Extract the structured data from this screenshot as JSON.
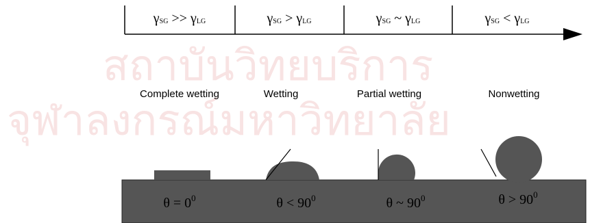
{
  "watermark": {
    "line1": "สถาบันวิทยบริการ",
    "line2": "จุฬาลงกรณ์มหาวิทยาลัย"
  },
  "conditions": [
    {
      "lhs": "γ",
      "lhs_sub": "SG",
      "op": ">>",
      "rhs": "γ",
      "rhs_sub": "LG"
    },
    {
      "lhs": "γ",
      "lhs_sub": "SG",
      "op": ">",
      "rhs": "γ",
      "rhs_sub": "LG"
    },
    {
      "lhs": "γ",
      "lhs_sub": "SG",
      "op": "~",
      "rhs": "γ",
      "rhs_sub": "LG"
    },
    {
      "lhs": "γ",
      "lhs_sub": "SG",
      "op": "<",
      "rhs": "γ",
      "rhs_sub": "LG"
    }
  ],
  "regimes": [
    "Complete wetting",
    "Wetting",
    "Partial wetting",
    "Nonwetting"
  ],
  "angles": [
    {
      "text": "θ = 0",
      "sup": "0"
    },
    {
      "text": "θ < 90",
      "sup": "0"
    },
    {
      "text": "θ ~ 90",
      "sup": "0"
    },
    {
      "text": "θ > 90",
      "sup": "0"
    }
  ]
}
